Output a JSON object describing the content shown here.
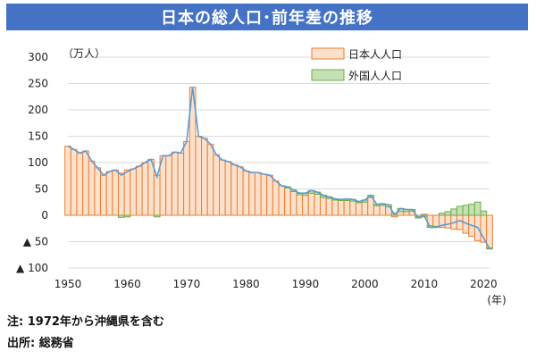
{
  "title": "日本の総人口･前年差の推移",
  "chart_data": {
    "type": "bar",
    "unit_label": "（万人）",
    "x_unit_label": "(年)",
    "ylim": [
      -100,
      300
    ],
    "y_ticks": [
      {
        "v": 300,
        "label": "300"
      },
      {
        "v": 250,
        "label": "250"
      },
      {
        "v": 200,
        "label": "200"
      },
      {
        "v": 150,
        "label": "150"
      },
      {
        "v": 100,
        "label": "100"
      },
      {
        "v": 50,
        "label": "50"
      },
      {
        "v": 0,
        "label": "0"
      },
      {
        "v": -50,
        "label": "▲ 50"
      },
      {
        "v": -100,
        "label": "▲ 100"
      }
    ],
    "x_ticks": [
      1950,
      1960,
      1970,
      1980,
      1990,
      2000,
      2010,
      2020
    ],
    "grid": true,
    "legend_position": "top-right",
    "colors": {
      "japanese_fill": "#fbe1cc",
      "japanese_stroke": "#ed7d31",
      "foreign_fill": "#c5e0b4",
      "foreign_stroke": "#70ad47",
      "total_line": "#5b9bd5"
    },
    "years": [
      1950,
      1951,
      1952,
      1953,
      1954,
      1955,
      1956,
      1957,
      1958,
      1959,
      1960,
      1961,
      1962,
      1963,
      1964,
      1965,
      1966,
      1967,
      1968,
      1969,
      1970,
      1971,
      1972,
      1973,
      1974,
      1975,
      1976,
      1977,
      1978,
      1979,
      1980,
      1981,
      1982,
      1983,
      1984,
      1985,
      1986,
      1987,
      1988,
      1989,
      1990,
      1991,
      1992,
      1993,
      1994,
      1995,
      1996,
      1997,
      1998,
      1999,
      2000,
      2001,
      2002,
      2003,
      2004,
      2005,
      2006,
      2007,
      2008,
      2009,
      2010,
      2011,
      2012,
      2013,
      2014,
      2015,
      2016,
      2017,
      2018,
      2019,
      2020,
      2021
    ],
    "series": [
      {
        "name": "日本人人口",
        "type": "bar",
        "values": [
          131,
          125,
          118,
          122,
          103,
          90,
          76,
          83,
          86,
          80,
          86,
          88,
          93,
          100,
          106,
          76,
          113,
          113,
          120,
          118,
          140,
          243,
          150,
          146,
          135,
          115,
          105,
          102,
          96,
          92,
          84,
          81,
          81,
          78,
          76,
          65,
          56,
          52,
          45,
          39,
          38,
          42,
          40,
          34,
          32,
          29,
          28,
          28,
          27,
          24,
          25,
          34,
          18,
          19,
          16,
          -3,
          7,
          7,
          8,
          -3,
          2,
          -20,
          -21,
          -23,
          -24,
          -26,
          -27,
          -34,
          -40,
          -48,
          -51,
          -62
        ]
      },
      {
        "name": "外国人人口",
        "type": "bar",
        "values": [
          0,
          0,
          0,
          0,
          0,
          0,
          0,
          0,
          0,
          -4,
          -3,
          0,
          0,
          0,
          0,
          -3,
          0,
          0,
          0,
          0,
          0,
          0,
          0,
          0,
          0,
          0,
          0,
          0,
          0,
          0,
          0,
          0,
          0,
          0,
          0,
          0,
          0,
          2,
          3,
          3,
          4,
          5,
          4,
          4,
          3,
          2,
          2,
          3,
          3,
          2,
          4,
          4,
          3,
          3,
          4,
          4,
          6,
          4,
          3,
          -2,
          -3,
          -3,
          -2,
          4,
          7,
          12,
          17,
          19,
          21,
          25,
          8,
          -2
        ]
      },
      {
        "name": "total",
        "type": "line",
        "values": [
          131,
          125,
          118,
          122,
          103,
          90,
          76,
          83,
          86,
          76,
          83,
          88,
          93,
          100,
          106,
          73,
          113,
          113,
          120,
          118,
          140,
          243,
          150,
          146,
          135,
          115,
          105,
          102,
          96,
          92,
          84,
          81,
          81,
          78,
          76,
          65,
          56,
          54,
          48,
          42,
          42,
          47,
          44,
          38,
          35,
          31,
          30,
          31,
          30,
          26,
          29,
          38,
          21,
          22,
          20,
          1,
          13,
          11,
          11,
          -5,
          -1,
          -23,
          -23,
          -19,
          -17,
          -14,
          -10,
          -15,
          -19,
          -23,
          -43,
          -64
        ]
      }
    ]
  },
  "footnotes": {
    "note": "注: 1972年から沖縄県を含む",
    "source": "出所: 総務省"
  }
}
